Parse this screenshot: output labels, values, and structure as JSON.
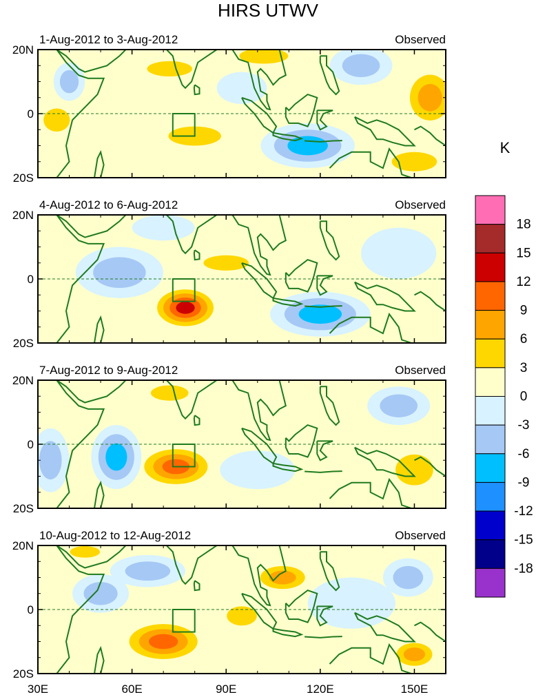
{
  "chart_data": {
    "type": "heatmap",
    "title": "HIRS UTWV",
    "units": "K",
    "x_ticks": [
      "30E",
      "60E",
      "90E",
      "120E",
      "150E"
    ],
    "y_ticks": [
      "20N",
      "0",
      "20S"
    ],
    "xlim": [
      30,
      160
    ],
    "ylim": [
      -20,
      20
    ],
    "colorbar": {
      "levels": [
        "18",
        "15",
        "12",
        "9",
        "6",
        "3",
        "0",
        "-3",
        "-6",
        "-9",
        "-12",
        "-15",
        "-18"
      ],
      "colors": [
        "#ff6eb4",
        "#a52a2a",
        "#cc0000",
        "#ff6600",
        "#ffa500",
        "#ffd700",
        "#ffffcc",
        "#d8f2ff",
        "#a6c8f5",
        "#00bfff",
        "#1e90ff",
        "#0000cd",
        "#00008b",
        "#9932cc"
      ]
    },
    "box": {
      "lon": [
        73,
        80
      ],
      "lat": [
        -7,
        0
      ]
    },
    "panels": [
      {
        "period": "1-Aug-2012 to 3-Aug-2012",
        "label": "Observed",
        "blobs": [
          {
            "lon": 80,
            "lat": -7,
            "rx": 14,
            "ry": 5,
            "v": 5
          },
          {
            "lon": 72,
            "lat": 14,
            "rx": 12,
            "ry": 4,
            "v": 4
          },
          {
            "lon": 55,
            "lat": 18,
            "rx": 8,
            "ry": 3,
            "v": 3
          },
          {
            "lon": 116,
            "lat": -10,
            "rx": 15,
            "ry": 7,
            "v": -8
          },
          {
            "lon": 102,
            "lat": 18,
            "rx": 13,
            "ry": 4,
            "v": 4
          },
          {
            "lon": 133,
            "lat": 15,
            "rx": 10,
            "ry": 6,
            "v": -6
          },
          {
            "lon": 155,
            "lat": 5,
            "rx": 9,
            "ry": 10,
            "v": 9
          },
          {
            "lon": 150,
            "lat": -15,
            "rx": 12,
            "ry": 5,
            "v": 6
          },
          {
            "lon": 95,
            "lat": 8,
            "rx": 8,
            "ry": 5,
            "v": -3
          },
          {
            "lon": 36,
            "lat": -2,
            "rx": 7,
            "ry": 6,
            "v": 4
          },
          {
            "lon": 40,
            "lat": 10,
            "rx": 5,
            "ry": 6,
            "v": -4
          }
        ]
      },
      {
        "period": "4-Aug-2012 to 6-Aug-2012",
        "label": "Observed",
        "blobs": [
          {
            "lon": 77,
            "lat": -9,
            "rx": 11,
            "ry": 7,
            "v": 13
          },
          {
            "lon": 90,
            "lat": 5,
            "rx": 12,
            "ry": 4,
            "v": 4
          },
          {
            "lon": 120,
            "lat": -11,
            "rx": 16,
            "ry": 7,
            "v": -8
          },
          {
            "lon": 56,
            "lat": 2,
            "rx": 14,
            "ry": 8,
            "v": -4
          },
          {
            "lon": 70,
            "lat": 16,
            "rx": 10,
            "ry": 4,
            "v": -3
          },
          {
            "lon": 33,
            "lat": -5,
            "rx": 6,
            "ry": 10,
            "v": 3
          },
          {
            "lon": 145,
            "lat": 8,
            "rx": 12,
            "ry": 8,
            "v": -3
          },
          {
            "lon": 152,
            "lat": -8,
            "rx": 8,
            "ry": 6,
            "v": 3
          }
        ]
      },
      {
        "period": "7-Aug-2012 to 9-Aug-2012",
        "label": "Observed",
        "blobs": [
          {
            "lon": 74,
            "lat": -7,
            "rx": 13,
            "ry": 7,
            "v": 12
          },
          {
            "lon": 55,
            "lat": -4,
            "rx": 8,
            "ry": 10,
            "v": -7
          },
          {
            "lon": 34,
            "lat": -5,
            "rx": 6,
            "ry": 10,
            "v": -6
          },
          {
            "lon": 72,
            "lat": 16,
            "rx": 10,
            "ry": 4,
            "v": 4
          },
          {
            "lon": 120,
            "lat": 12,
            "rx": 10,
            "ry": 6,
            "v": 3
          },
          {
            "lon": 100,
            "lat": -8,
            "rx": 12,
            "ry": 6,
            "v": -3
          },
          {
            "lon": 150,
            "lat": -8,
            "rx": 10,
            "ry": 8,
            "v": 5
          },
          {
            "lon": 145,
            "lat": 12,
            "rx": 10,
            "ry": 6,
            "v": -4
          },
          {
            "lon": 50,
            "lat": 16,
            "rx": 10,
            "ry": 3,
            "v": 3
          }
        ]
      },
      {
        "period": "10-Aug-2012 to 12-Aug-2012",
        "label": "Observed",
        "blobs": [
          {
            "lon": 70,
            "lat": -10,
            "rx": 14,
            "ry": 7,
            "v": 10
          },
          {
            "lon": 108,
            "lat": 10,
            "rx": 10,
            "ry": 5,
            "v": 8
          },
          {
            "lon": 95,
            "lat": -2,
            "rx": 8,
            "ry": 5,
            "v": 4
          },
          {
            "lon": 65,
            "lat": 12,
            "rx": 12,
            "ry": 5,
            "v": -6
          },
          {
            "lon": 50,
            "lat": 5,
            "rx": 9,
            "ry": 6,
            "v": -4
          },
          {
            "lon": 45,
            "lat": 18,
            "rx": 8,
            "ry": 3,
            "v": 5
          },
          {
            "lon": 150,
            "lat": -14,
            "rx": 8,
            "ry": 5,
            "v": 7
          },
          {
            "lon": 130,
            "lat": 2,
            "rx": 14,
            "ry": 8,
            "v": -3
          },
          {
            "lon": 148,
            "lat": 10,
            "rx": 8,
            "ry": 6,
            "v": -5
          },
          {
            "lon": 118,
            "lat": -14,
            "rx": 12,
            "ry": 4,
            "v": 3
          }
        ]
      }
    ]
  }
}
